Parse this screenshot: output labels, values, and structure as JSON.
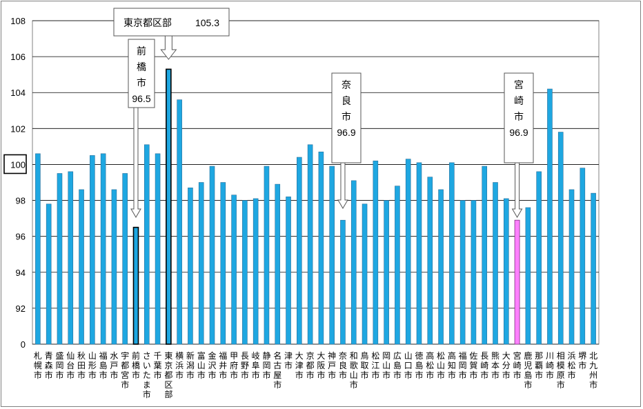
{
  "chart_data": {
    "type": "bar",
    "title": "",
    "xlabel": "",
    "ylabel": "",
    "ylim": [
      0,
      108
    ],
    "grid": true,
    "y_ticks": [
      "0",
      "92",
      "94",
      "96",
      "98",
      "100",
      "102",
      "104",
      "106",
      "108"
    ],
    "categories": [
      "札幌市",
      "青森市",
      "盛岡市",
      "仙台市",
      "秋田市",
      "山形市",
      "福島市",
      "水戸市",
      "宇都宮市",
      "前橋市",
      "さいたま市",
      "千葉市",
      "東京都区部",
      "横浜市",
      "新潟市",
      "富山市",
      "金沢市",
      "福井市",
      "甲府市",
      "長野市",
      "岐阜市",
      "静岡市",
      "名古屋市",
      "津市",
      "大津市",
      "京都市",
      "大阪市",
      "神戸市",
      "奈良市",
      "和歌山市",
      "鳥取市",
      "松江市",
      "岡山市",
      "広島市",
      "山口市",
      "徳島市",
      "高松市",
      "松山市",
      "高知市",
      "福岡市",
      "佐賀市",
      "長崎市",
      "熊本市",
      "大分市",
      "宮崎市",
      "鹿児島市",
      "那覇市",
      "川崎市",
      "相模原市",
      "浜松市",
      "堺市",
      "北九州市"
    ],
    "values": [
      100.6,
      97.8,
      99.5,
      99.6,
      98.6,
      100.5,
      100.6,
      98.6,
      99.5,
      96.5,
      101.1,
      100.6,
      105.3,
      103.6,
      98.7,
      99.0,
      99.9,
      99.0,
      98.3,
      98.0,
      98.1,
      99.9,
      98.9,
      98.2,
      100.4,
      101.1,
      100.7,
      99.9,
      96.9,
      99.1,
      97.8,
      100.2,
      98.0,
      98.8,
      100.3,
      100.1,
      99.3,
      98.6,
      100.1,
      98.0,
      98.0,
      99.9,
      99.0,
      98.1,
      96.9,
      97.6,
      99.6,
      104.2,
      101.8,
      98.6,
      99.8,
      98.4
    ],
    "highlight": {
      "前橋市": "#000000",
      "東京都区部": "#000000",
      "宮崎市": "#ff80ff"
    },
    "baseline_tick": "100",
    "bar_color": "#1ea7e1",
    "annotations": [
      {
        "target": "東京都区部",
        "label": "東京都区部",
        "value": "105.3"
      },
      {
        "target": "前橋市",
        "label": "前橋市",
        "value": "96.5"
      },
      {
        "target": "奈良市",
        "label": "奈良市",
        "value": "96.9"
      },
      {
        "target": "宮崎市",
        "label": "宮崎市",
        "value": "96.9"
      }
    ]
  }
}
